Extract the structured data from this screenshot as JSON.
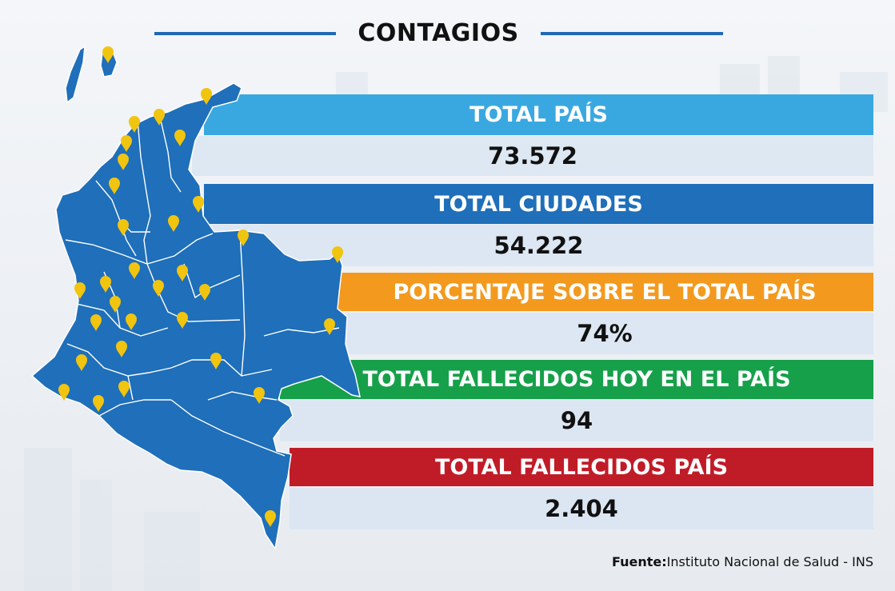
{
  "title": "CONTAGIOS",
  "stats": [
    {
      "label": "TOTAL PAÍS",
      "value": "73.572",
      "color": "#3aa8e0"
    },
    {
      "label": "TOTAL CIUDADES",
      "value": "54.222",
      "color": "#1f6fba"
    },
    {
      "label": "PORCENTAJE SOBRE EL TOTAL PAÍS",
      "value": "74%",
      "color": "#f39a1e"
    },
    {
      "label": "TOTAL FALLECIDOS HOY EN EL PAÍS",
      "value": "94",
      "color": "#16a04a"
    },
    {
      "label": "TOTAL FALLECIDOS PAÍS",
      "value": "2.404",
      "color": "#c01c28"
    }
  ],
  "source": {
    "prefix": "Fuente:",
    "text": "Instituto Nacional de Salud - INS"
  },
  "map": {
    "country": "Colombia",
    "fill_color": "#1f6fba",
    "marker_color": "#f1c40f",
    "marker_icon": "map-pin-icon"
  }
}
